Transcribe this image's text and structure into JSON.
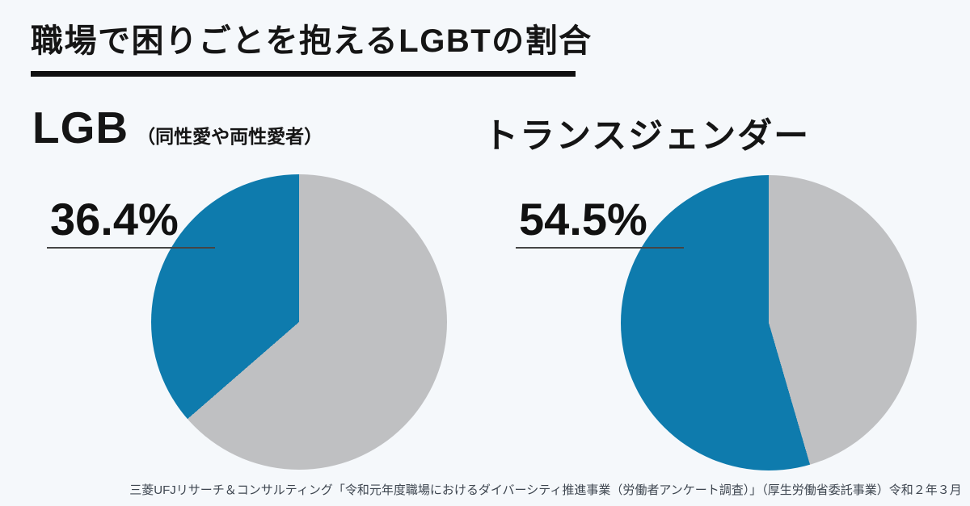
{
  "page": {
    "background_color": "#f5f8fb",
    "title": "職場で困りごとを抱えるLGBTの割合",
    "source": "三菱UFJリサーチ＆コンサルティング「令和元年度職場におけるダイバーシティ推進事業（労働者アンケート調査）」（厚生労働省委託事業）令和２年３月"
  },
  "colors": {
    "highlight_blue": "#0e7bad",
    "remainder_gray": "#bfc0c2",
    "title_text": "#151515",
    "source_text": "#3e4650",
    "title_rule": "#101010",
    "percent_underline": "#454545"
  },
  "charts": [
    {
      "label": "LGB",
      "sublabel": "（同性愛や両性愛者）",
      "value_label": "36.4%"
    },
    {
      "label": "トランスジェンダー",
      "sublabel": "",
      "value_label": "54.5%"
    }
  ],
  "chart_data": [
    {
      "type": "pie",
      "title": "LGB（同性愛や両性愛者）",
      "annotation": "36.4%",
      "values": [
        36.4,
        63.6
      ],
      "series": [
        {
          "name": "highlighted-share",
          "value": 36.4,
          "color": "#0e7bad"
        },
        {
          "name": "remainder",
          "value": 63.6,
          "color": "#bfc0c2"
        }
      ],
      "highlight_color": "#0e7bad",
      "remainder_color": "#bfc0c2",
      "layout": "highlighted slice sweeps counterclockwise from 12 o'clock; no labels on slices; annotation at upper left"
    },
    {
      "type": "pie",
      "title": "トランスジェンダー",
      "annotation": "54.5%",
      "values": [
        54.5,
        45.5
      ],
      "series": [
        {
          "name": "highlighted-share",
          "value": 54.5,
          "color": "#0e7bad"
        },
        {
          "name": "remainder",
          "value": 45.5,
          "color": "#bfc0c2"
        }
      ],
      "highlight_color": "#0e7bad",
      "remainder_color": "#bfc0c2",
      "layout": "highlighted slice sweeps counterclockwise from 12 o'clock; no labels on slices; annotation at upper left"
    }
  ]
}
